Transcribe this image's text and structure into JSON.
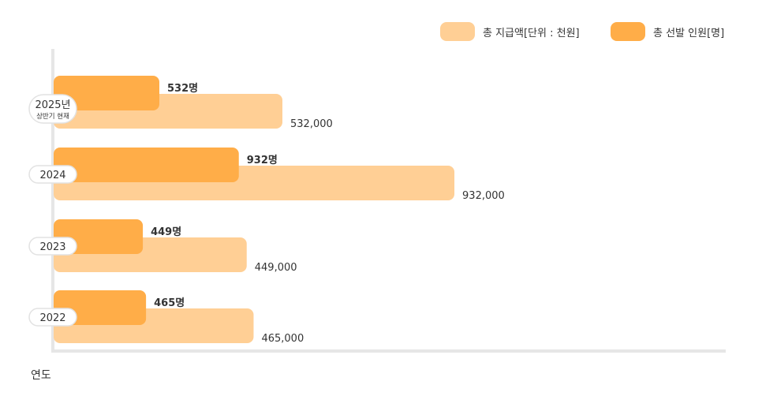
{
  "chart_data": {
    "type": "bar",
    "orientation": "horizontal",
    "categories": [
      {
        "label": "2025년",
        "sub": "상반기 현재"
      },
      {
        "label": "2024",
        "sub": ""
      },
      {
        "label": "2023",
        "sub": ""
      },
      {
        "label": "2022",
        "sub": ""
      }
    ],
    "series": [
      {
        "name": "총 선발 인원[명]",
        "color": "#FFAD48",
        "values": [
          532,
          932,
          449,
          465
        ],
        "labels": [
          "532명",
          "932명",
          "449명",
          "465명"
        ]
      },
      {
        "name": "총 지급액[단위 : 천원]",
        "color": "#FFCF95",
        "values": [
          532000,
          932000,
          449000,
          465000
        ],
        "labels": [
          "532,000",
          "932,000",
          "449,000",
          "465,000"
        ]
      }
    ],
    "xlabel": "연도",
    "legend_position": "top-right",
    "grid": false
  }
}
